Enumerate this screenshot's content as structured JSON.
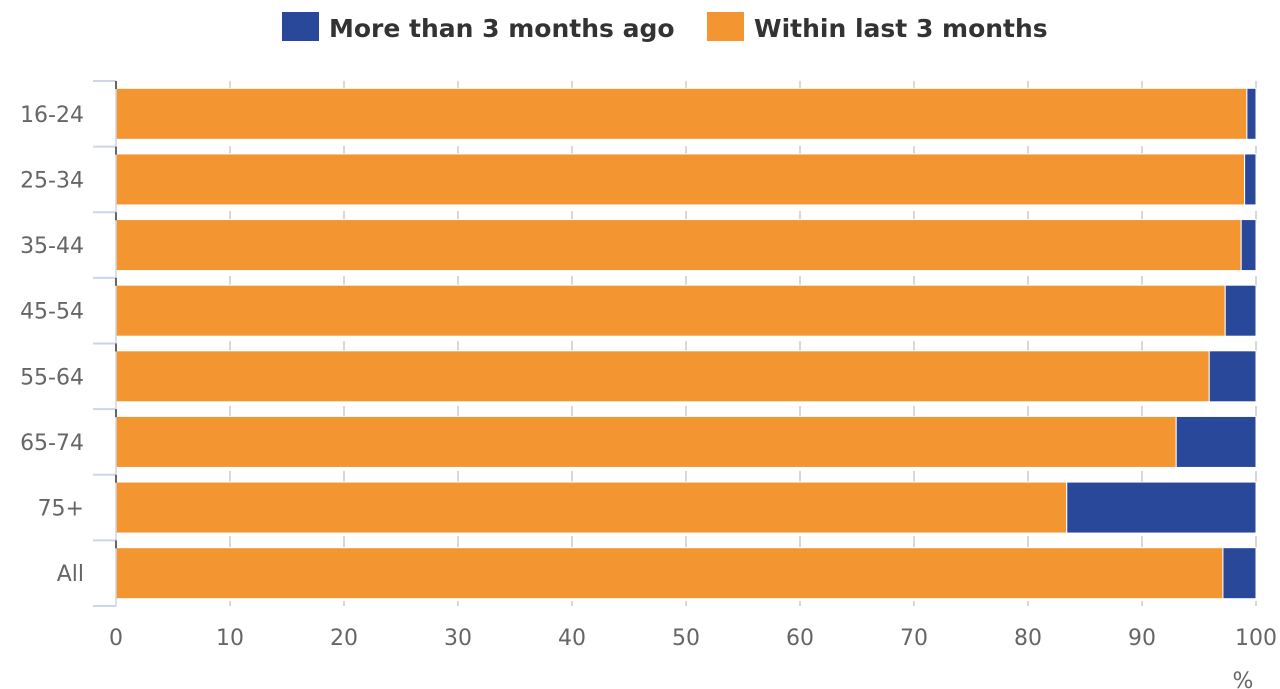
{
  "chart_data": {
    "type": "bar",
    "orientation": "horizontal",
    "stacked": true,
    "categories": [
      "16-24",
      "25-34",
      "35-44",
      "45-54",
      "55-64",
      "65-74",
      "75+",
      "All"
    ],
    "series": [
      {
        "name": "Within last 3 months",
        "color": "#f39530",
        "values": [
          99.2,
          99.0,
          98.7,
          97.3,
          95.9,
          93.0,
          83.4,
          97.1
        ]
      },
      {
        "name": "More than 3 months ago",
        "color": "#2a4899",
        "values": [
          0.8,
          1.0,
          1.3,
          2.7,
          4.1,
          7.0,
          16.6,
          2.9
        ]
      }
    ],
    "legend": {
      "position": "top",
      "items": [
        {
          "label": "More than 3 months ago",
          "color": "#2a4899"
        },
        {
          "label": "Within last 3 months",
          "color": "#f39530"
        }
      ]
    },
    "xaxis": {
      "ticks": [
        "0",
        "10",
        "20",
        "30",
        "40",
        "50",
        "60",
        "70",
        "80",
        "90",
        "100"
      ],
      "unit": "%"
    },
    "xlim": [
      0,
      100
    ],
    "grid": "vertical-dashed"
  }
}
